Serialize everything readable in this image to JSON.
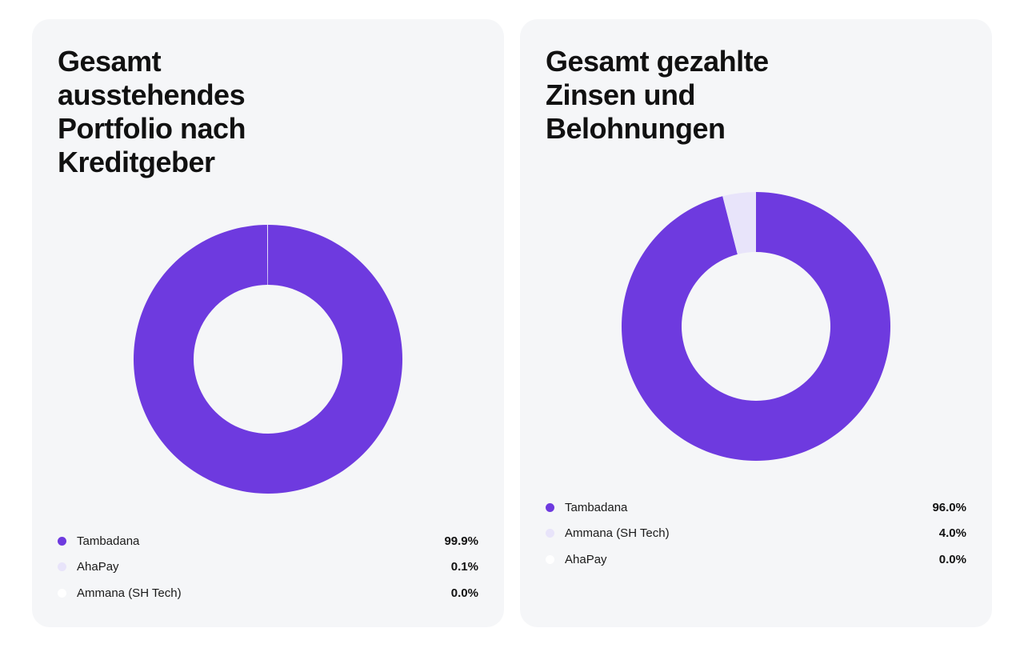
{
  "chart_data": [
    {
      "type": "pie",
      "title": "Gesamt ausstehendes Portfolio nach Kreditgeber",
      "donut": true,
      "legend_position": "bottom",
      "slices": [
        {
          "name": "Tambadana",
          "value": 99.9,
          "label": "99.9%",
          "color": "#6e3adf"
        },
        {
          "name": "AhaPay",
          "value": 0.1,
          "label": "0.1%",
          "color": "#e8e4fa"
        },
        {
          "name": "Ammana (SH Tech)",
          "value": 0.0,
          "label": "0.0%",
          "color": "#ffffff"
        }
      ]
    },
    {
      "type": "pie",
      "title": "Gesamt gezahlte Zinsen und Belohnungen",
      "donut": true,
      "legend_position": "bottom",
      "slices": [
        {
          "name": "Tambadana",
          "value": 96.0,
          "label": "96.0%",
          "color": "#6e3adf"
        },
        {
          "name": "Ammana (SH Tech)",
          "value": 4.0,
          "label": "4.0%",
          "color": "#e8e4fa"
        },
        {
          "name": "AhaPay",
          "value": 0.0,
          "label": "0.0%",
          "color": "#ffffff"
        }
      ]
    }
  ]
}
